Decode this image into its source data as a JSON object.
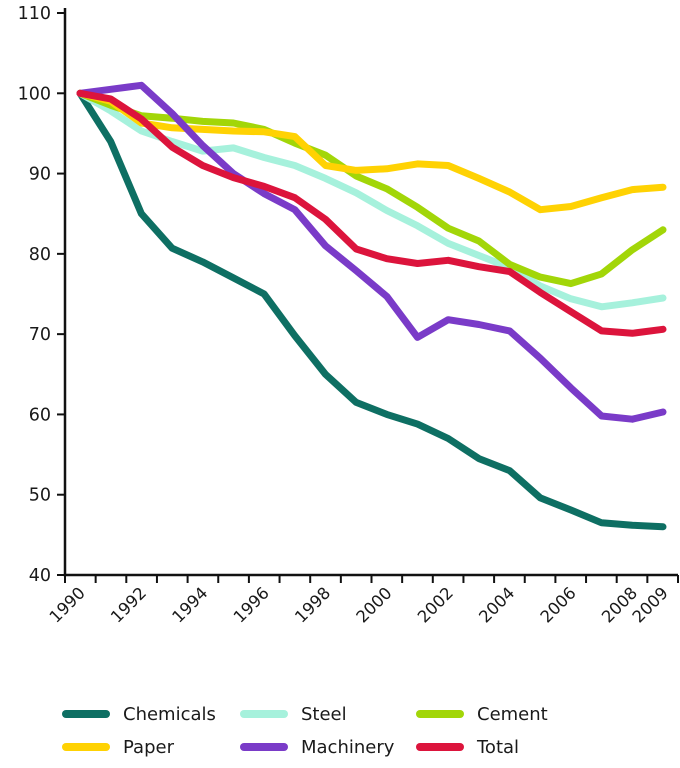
{
  "chart_data": {
    "type": "line",
    "title": "",
    "xlabel": "",
    "ylabel": "",
    "x": [
      1990,
      1991,
      1992,
      1993,
      1994,
      1995,
      1996,
      1997,
      1998,
      1999,
      2000,
      2001,
      2002,
      2003,
      2004,
      2005,
      2006,
      2007,
      2008,
      2009
    ],
    "x_tick_labels": [
      "1990",
      "1992",
      "1994",
      "1996",
      "1998",
      "2000",
      "2002",
      "2004",
      "2006",
      "2008",
      "2009"
    ],
    "x_labeled_indices": [
      0,
      2,
      4,
      6,
      8,
      10,
      12,
      14,
      16,
      18,
      19
    ],
    "ylim": [
      40,
      110
    ],
    "y_ticks": [
      40,
      50,
      60,
      70,
      80,
      90,
      100,
      110
    ],
    "grid": false,
    "legend_position": "bottom",
    "axis_color": "#111111",
    "text_color": "#1a1a1a",
    "series": [
      {
        "name": "Chemicals",
        "color": "#0e6f63",
        "values": [
          100,
          94,
          85,
          80.7,
          79,
          77,
          75,
          69.8,
          65,
          61.5,
          60,
          58.8,
          57,
          54.5,
          53,
          49.6,
          48.1,
          46.5,
          46.2,
          46
        ]
      },
      {
        "name": "Steel",
        "color": "#a6f1dc",
        "values": [
          100,
          97.8,
          95.3,
          94,
          92.8,
          93.2,
          92,
          91,
          89.4,
          87.6,
          85.4,
          83.5,
          81.3,
          79.8,
          78.3,
          76,
          74.4,
          73.4,
          73.9,
          74.5
        ]
      },
      {
        "name": "Cement",
        "color": "#a2d608",
        "values": [
          100,
          98.5,
          97.2,
          96.9,
          96.5,
          96.3,
          95.5,
          93.8,
          92.3,
          89.7,
          88.1,
          85.8,
          83.2,
          81.6,
          78.7,
          77.1,
          76.3,
          77.5,
          80.5,
          83
        ]
      },
      {
        "name": "Paper",
        "color": "#ffd203",
        "values": [
          100,
          99,
          96.3,
          95.7,
          95.5,
          95.3,
          95.2,
          94.6,
          91,
          90.4,
          90.6,
          91.2,
          91,
          89.4,
          87.7,
          85.5,
          85.9,
          87,
          88,
          88.3
        ]
      },
      {
        "name": "Machinery",
        "color": "#7a3bc8",
        "values": [
          100,
          100.5,
          101,
          97.5,
          93.5,
          90,
          87.5,
          85.5,
          81,
          77.9,
          74.7,
          69.6,
          71.8,
          71.2,
          70.4,
          67,
          63.3,
          59.8,
          59.4,
          60.3
        ]
      },
      {
        "name": "Total",
        "color": "#dc143c",
        "values": [
          100,
          99.3,
          96.8,
          93.3,
          91,
          89.5,
          88.4,
          87,
          84.3,
          80.6,
          79.4,
          78.8,
          79.2,
          78.4,
          77.8,
          75.2,
          72.8,
          70.4,
          70.1,
          70.6
        ]
      }
    ],
    "legend_rows": [
      [
        "Chemicals",
        "Steel",
        "Cement"
      ],
      [
        "Paper",
        "Machinery",
        "Total"
      ]
    ]
  }
}
